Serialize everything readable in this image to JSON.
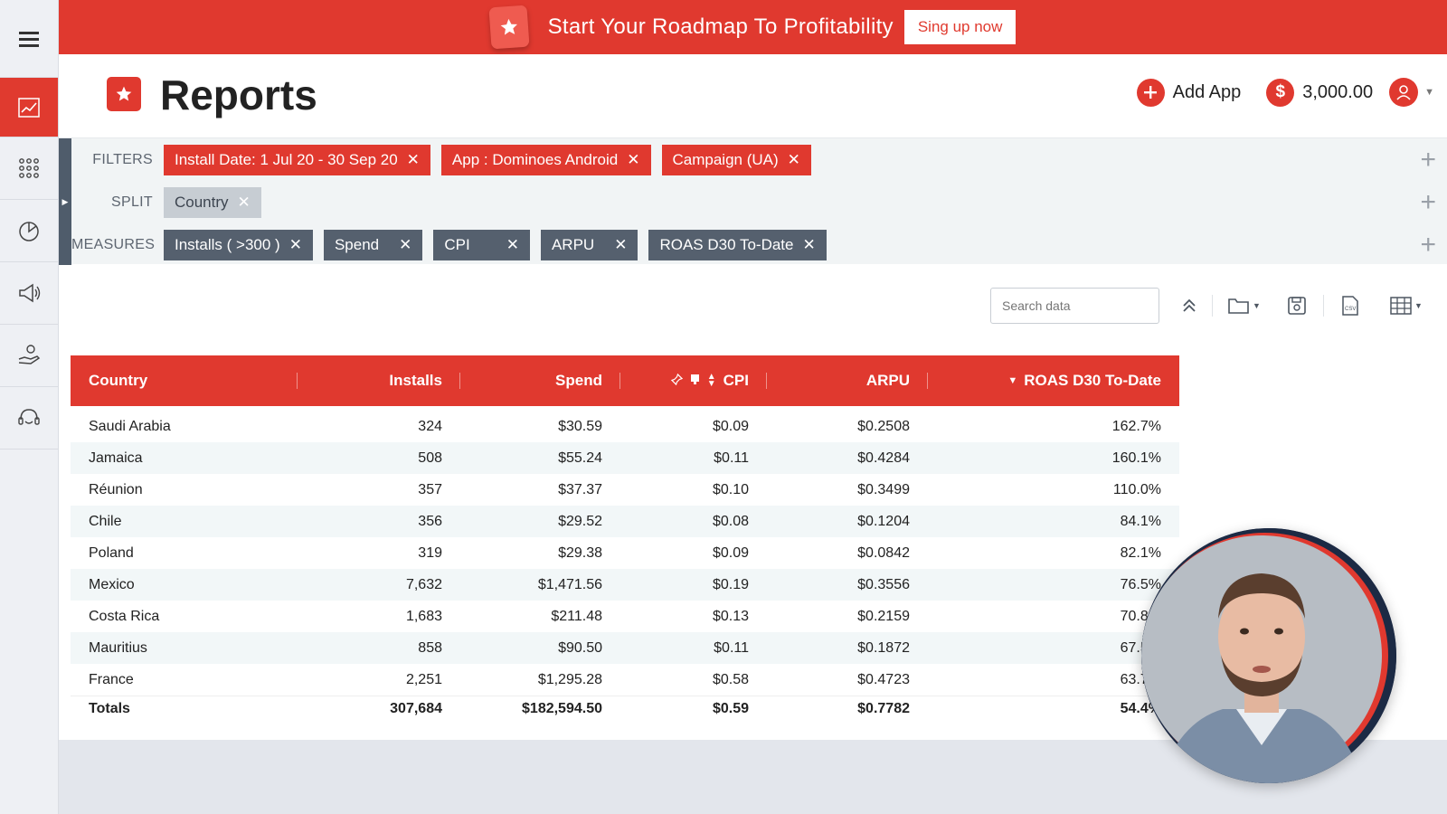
{
  "sidebar": {
    "items": [
      {
        "icon": "hamburger-menu-icon"
      },
      {
        "icon": "line-chart-icon",
        "active": true
      },
      {
        "icon": "apps-grid-icon"
      },
      {
        "icon": "pie-chart-icon"
      },
      {
        "icon": "megaphone-icon"
      },
      {
        "icon": "hand-money-icon"
      },
      {
        "icon": "headset-support-icon"
      }
    ]
  },
  "banner": {
    "text": "Start Your Roadmap To Profitability",
    "button_label": "Sing up now"
  },
  "header": {
    "title": "Reports",
    "add_app_label": "Add App",
    "balance": "3,000.00"
  },
  "filters": {
    "filters_label": "FILTERS",
    "split_label": "SPLIT",
    "measures_label": "MEASURES",
    "filter_chips": [
      "Install Date: 1 Jul 20 - 30 Sep 20",
      "App : Dominoes Android",
      "Campaign (UA)"
    ],
    "split_chips": [
      "Country"
    ],
    "measure_chips": [
      "Installs ( >300 )",
      "Spend",
      "CPI",
      "ARPU",
      "ROAS D30 To-Date"
    ]
  },
  "toolbar": {
    "search_placeholder": "Search data"
  },
  "table": {
    "columns": [
      "Country",
      "Installs",
      "Spend",
      "CPI",
      "ARPU",
      "ROAS D30 To-Date"
    ],
    "rows": [
      [
        "Saudi Arabia",
        "324",
        "$30.59",
        "$0.09",
        "$0.2508",
        "162.7%"
      ],
      [
        "Jamaica",
        "508",
        "$55.24",
        "$0.11",
        "$0.4284",
        "160.1%"
      ],
      [
        "Réunion",
        "357",
        "$37.37",
        "$0.10",
        "$0.3499",
        "110.0%"
      ],
      [
        "Chile",
        "356",
        "$29.52",
        "$0.08",
        "$0.1204",
        "84.1%"
      ],
      [
        "Poland",
        "319",
        "$29.38",
        "$0.09",
        "$0.0842",
        "82.1%"
      ],
      [
        "Mexico",
        "7,632",
        "$1,471.56",
        "$0.19",
        "$0.3556",
        "76.5%"
      ],
      [
        "Costa Rica",
        "1,683",
        "$211.48",
        "$0.13",
        "$0.2159",
        "70.8%"
      ],
      [
        "Mauritius",
        "858",
        "$90.50",
        "$0.11",
        "$0.1872",
        "67.5%"
      ],
      [
        "France",
        "2,251",
        "$1,295.28",
        "$0.58",
        "$0.4723",
        "63.7%"
      ]
    ],
    "totals": [
      "Totals",
      "307,684",
      "$182,594.50",
      "$0.59",
      "$0.7782",
      "54.4%"
    ]
  },
  "colors": {
    "brand_red": "#e0392f",
    "dark_chip": "#55606e",
    "grey_chip": "#c7cdd3"
  }
}
